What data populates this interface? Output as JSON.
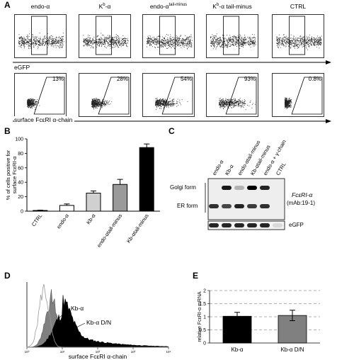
{
  "panels": {
    "A": "A",
    "B": "B",
    "C": "C",
    "D": "D",
    "E": "E"
  },
  "panel_a": {
    "titles": [
      "endo-α",
      "Kb-α",
      "endo-αtail-minus",
      "Kb-αtail-minus",
      "CTRL"
    ],
    "title_parts": [
      {
        "base": "endo-α",
        "sup": "",
        "post": ""
      },
      {
        "base": "K",
        "sup": "b",
        "post": "-α"
      },
      {
        "base": "endo-α",
        "sup": "tail-minus",
        "post": ""
      },
      {
        "base": "K",
        "sup": "b",
        "post": "-α tail-minus"
      },
      {
        "base": "CTRL",
        "sup": "",
        "post": ""
      }
    ],
    "egfp_label": "eGFP",
    "surface_label": "surface FcεRI α-chain",
    "percentages": [
      "13%",
      "28%",
      "54%",
      "93%",
      "0.8%"
    ]
  },
  "panel_b": {
    "ylabel": "% of cells positive for surface FcεRI-α",
    "ylabel_line1": "% of cells positive for",
    "ylabel_line2": "surface FcεRI-α",
    "chart_data": {
      "type": "bar",
      "categories": [
        "CTRL",
        "endo-α",
        "Kb-α",
        "endo-αtail-minus",
        "Kb-αtail-minus"
      ],
      "category_labels": [
        "CTRL",
        "endo-α",
        "Kb-α",
        "endo-αtail-minus",
        "Kb-αtail-minus"
      ],
      "values": [
        1,
        8,
        25,
        37,
        88
      ],
      "errors": [
        0.5,
        2,
        3,
        7,
        5
      ],
      "colors": [
        "#ffffff",
        "#ffffff",
        "#d0d0d0",
        "#9a9a9a",
        "#000000"
      ],
      "ylim": [
        0,
        100
      ],
      "yticks": [
        0,
        20,
        40,
        60,
        80,
        100
      ]
    }
  },
  "panel_c": {
    "lanes": [
      "endo-α",
      "Kb-α",
      "endo-αtail-minus",
      "Kb-αtail-minus",
      "endo-α + γ-chain",
      "CTRL"
    ],
    "golgi_label": "Golgi form",
    "er_label": "ER form",
    "fc_label": "FcεRI-α",
    "mab_label": "(mAb:19-1)",
    "egfp_label": "eGFP"
  },
  "panel_d": {
    "label_kb": "Kb-α",
    "label_dn": "Kb-α D/N",
    "xlabel": "surface FcεRI α-chain",
    "ticks": [
      "10⁰",
      "10¹",
      "10²",
      "10³",
      "10⁴"
    ]
  },
  "panel_e": {
    "ylabel": "relative FcεRI-α mRNA",
    "chart_data": {
      "type": "bar",
      "categories": [
        "Kb-α",
        "Kb-α D/N"
      ],
      "values": [
        1.02,
        1.05
      ],
      "errors": [
        0.15,
        0.2
      ],
      "colors": [
        "#000000",
        "#808080"
      ],
      "ylim": [
        0,
        2
      ],
      "yticks": [
        "0",
        "0.5",
        "1",
        "1.5",
        "2"
      ],
      "grid": true
    }
  }
}
